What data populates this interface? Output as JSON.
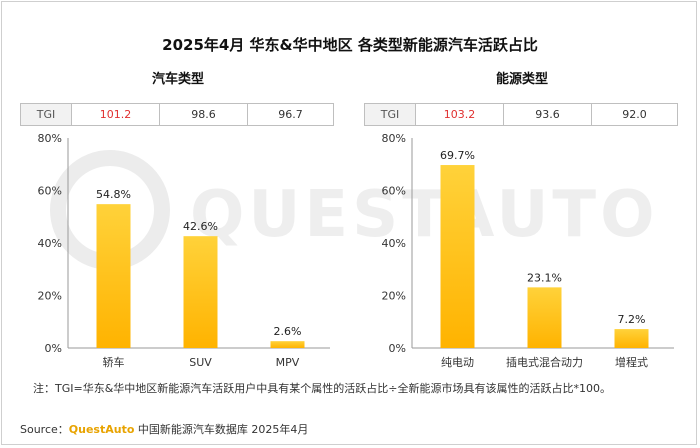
{
  "title": "2025年4月 华东&华中地区 各类型新能源汽车活跃占比",
  "panels": [
    {
      "subtitle": "汽车类型",
      "tgi_label": "TGI",
      "tgi_values": [
        "101.2",
        "98.6",
        "96.7"
      ],
      "tgi_highlight_index": 0
    },
    {
      "subtitle": "能源类型",
      "tgi_label": "TGI",
      "tgi_values": [
        "103.2",
        "93.6",
        "92.0"
      ],
      "tgi_highlight_index": 0
    }
  ],
  "chart_data": [
    {
      "type": "bar",
      "title": "汽车类型",
      "categories": [
        "轿车",
        "SUV",
        "MPV"
      ],
      "values": [
        54.8,
        42.6,
        2.6
      ],
      "value_labels": [
        "54.8%",
        "42.6%",
        "2.6%"
      ],
      "y_ticks": [
        "0%",
        "20%",
        "40%",
        "60%",
        "80%"
      ],
      "ylim": [
        0,
        80
      ],
      "grid": false
    },
    {
      "type": "bar",
      "title": "能源类型",
      "categories": [
        "纯电动",
        "插电式混合动力",
        "增程式"
      ],
      "values": [
        69.7,
        23.1,
        7.2
      ],
      "value_labels": [
        "69.7%",
        "23.1%",
        "7.2%"
      ],
      "y_ticks": [
        "0%",
        "20%",
        "40%",
        "60%",
        "80%"
      ],
      "ylim": [
        0,
        80
      ],
      "grid": false
    }
  ],
  "colors": {
    "bar_top": "#ffd23a",
    "bar_bottom": "#ffb300",
    "highlight_text": "#e03030",
    "brand": "#e8a300"
  },
  "note": "注：TGI=华东&华中地区新能源汽车活跃用户中具有某个属性的活跃占比÷全新能源市场具有该属性的活跃占比*100。",
  "source": {
    "label": "Source：",
    "brand": "QuestAuto",
    "text": "中国新能源汽车数据库 2025年4月"
  },
  "watermark_text": "QUESTAUTO"
}
